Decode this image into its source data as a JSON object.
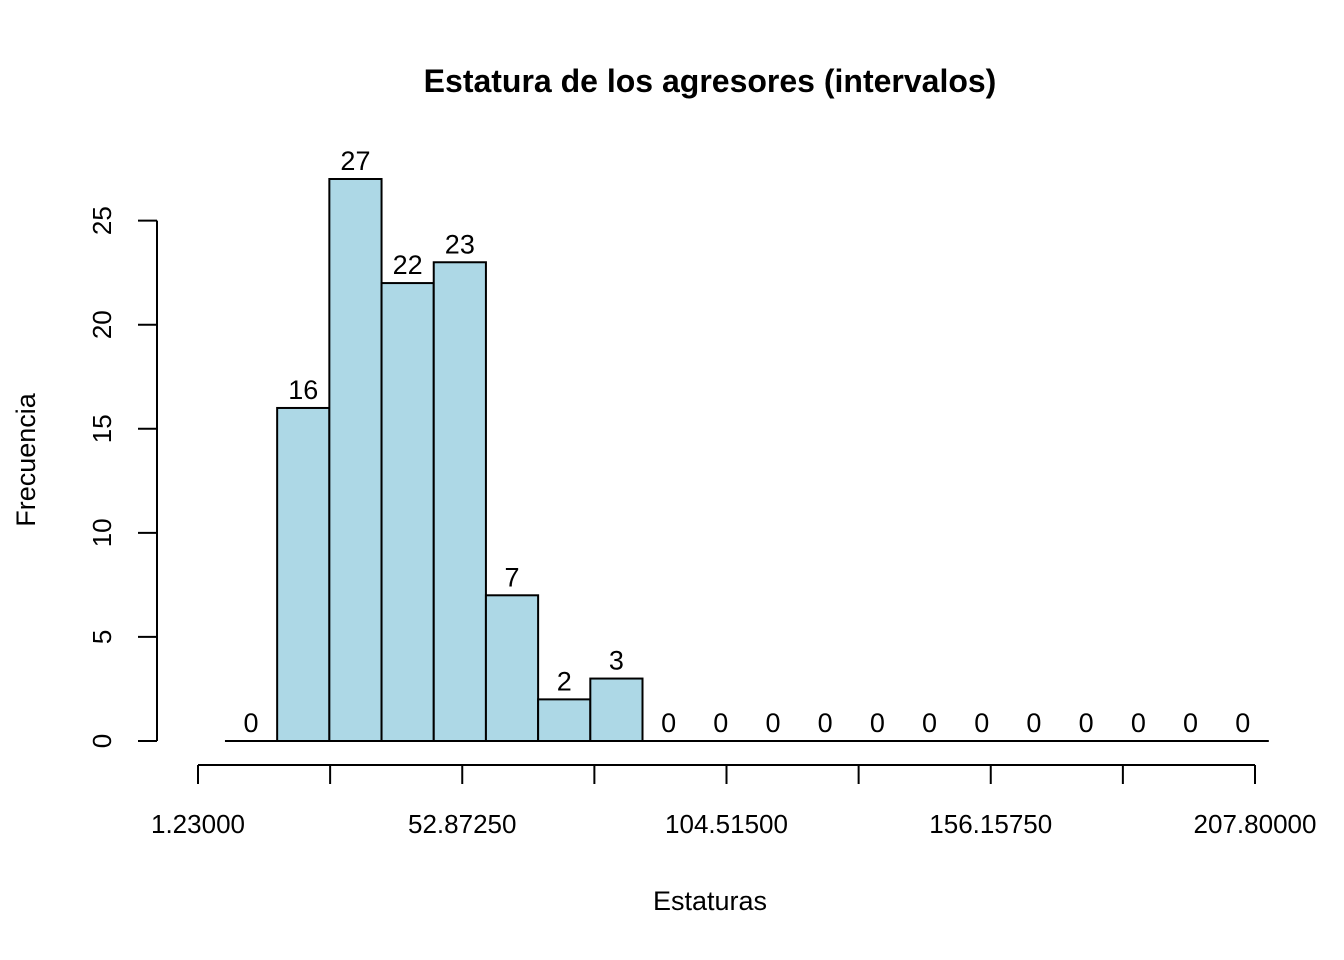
{
  "chart_data": {
    "type": "bar",
    "title": "Estatura de los agresores (intervalos)",
    "xlabel": "Estaturas",
    "ylabel": "Frecuencia",
    "bin_width": 10.2,
    "bins_start": 6.5,
    "values": [
      0,
      16,
      27,
      22,
      23,
      7,
      2,
      3,
      0,
      0,
      0,
      0,
      0,
      0,
      0,
      0,
      0,
      0,
      0,
      0
    ],
    "bar_color": "#add8e6",
    "ylim": [
      0,
      27
    ],
    "yticks": [
      0,
      5,
      10,
      15,
      20,
      25
    ],
    "x_axis_range": [
      1.23,
      207.8
    ],
    "x_ticks": [
      1.23,
      27.05125,
      52.8725,
      78.69375,
      104.515,
      130.33625,
      156.1575,
      181.97875,
      207.8
    ],
    "x_tick_labels": [
      "1.23000",
      "",
      "52.87250",
      "",
      "104.51500",
      "",
      "156.15750",
      "",
      "207.80000"
    ],
    "grid": false,
    "legend": "none"
  }
}
